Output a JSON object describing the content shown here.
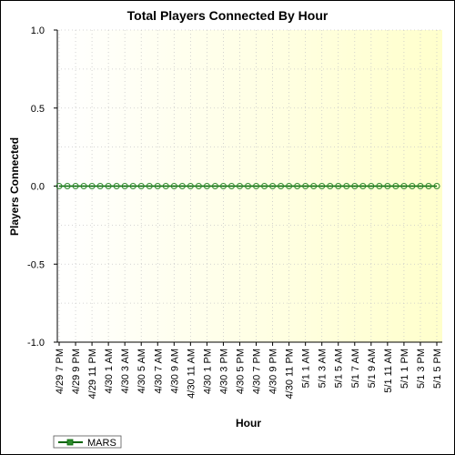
{
  "chart_data": {
    "type": "line",
    "title": "Total Players Connected By Hour",
    "xlabel": "Hour",
    "ylabel": "Players Connected",
    "ylim": [
      -1.0,
      1.0
    ],
    "y_ticks": [
      "1.0",
      "0.5",
      "0.0",
      "-0.5",
      "-1.0"
    ],
    "y_tick_values": [
      1.0,
      0.5,
      0.0,
      -0.5,
      -1.0
    ],
    "x_tick_labels": [
      "4/29 7 PM",
      "4/29 9 PM",
      "4/29 11 PM",
      "4/30 1 AM",
      "4/30 3 AM",
      "4/30 5 AM",
      "4/30 7 AM",
      "4/30 9 AM",
      "4/30 11 AM",
      "4/30 1 PM",
      "4/30 3 PM",
      "4/30 5 PM",
      "4/30 7 PM",
      "4/30 9 PM",
      "4/30 11 PM",
      "5/1 1 AM",
      "5/1 3 AM",
      "5/1 5 AM",
      "5/1 7 AM",
      "5/1 9 AM",
      "5/1 11 AM",
      "5/1 1 PM",
      "5/1 3 PM",
      "5/1 5 PM"
    ],
    "points_count": 47,
    "series": [
      {
        "name": "MARS",
        "value_all_points": 0.0
      }
    ],
    "grid": true,
    "legend_position": "bottom-left",
    "colors": {
      "series_line": "#006400",
      "series_marker": "#2e8b2e",
      "plot_bg_start": "#ffffff",
      "plot_bg_end": "#ffffcc",
      "grid": "#c8c8c8"
    }
  }
}
